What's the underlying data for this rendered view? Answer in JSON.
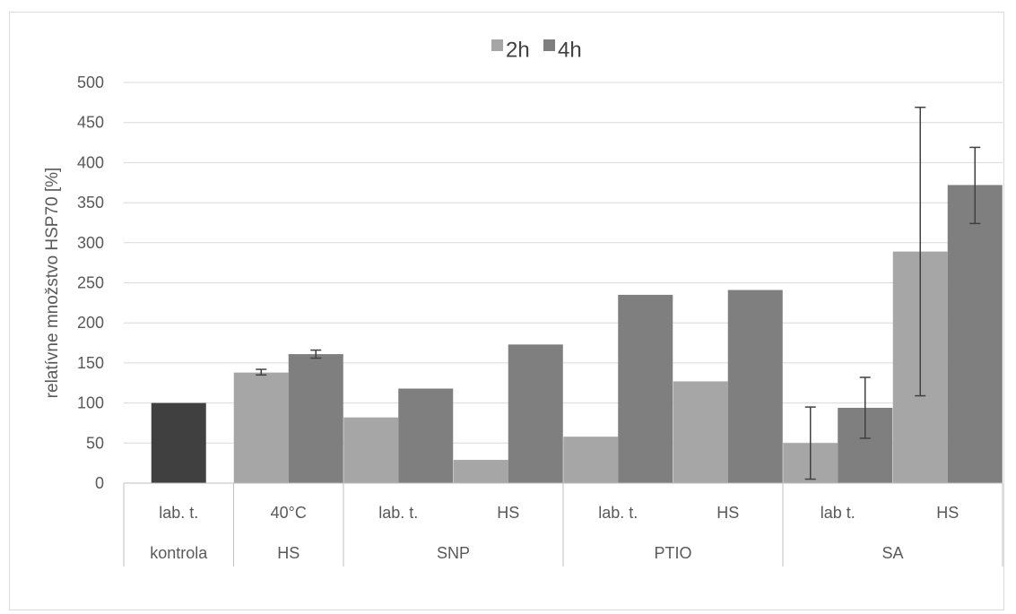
{
  "chart_data": {
    "type": "bar",
    "title": "",
    "xlabel": "",
    "ylabel": "relatívne množstvo HSP70 [%]",
    "ylim": [
      0,
      500
    ],
    "yticks": [
      0,
      50,
      100,
      150,
      200,
      250,
      300,
      350,
      400,
      450,
      500
    ],
    "grid": true,
    "legend_position": "top",
    "colors": {
      "2h": "#a6a6a6",
      "4h": "#7f7f7f",
      "kontrola": "#404040"
    },
    "series": [
      {
        "name": "2h",
        "values": [
          100,
          138,
          82,
          29,
          58,
          127,
          50,
          289
        ]
      },
      {
        "name": "4h",
        "values": [
          null,
          161,
          118,
          173,
          235,
          241,
          94,
          372
        ]
      }
    ],
    "errors": [
      {
        "series": "2h",
        "index": 1,
        "low": 135,
        "high": 142
      },
      {
        "series": "4h",
        "index": 1,
        "low": 156,
        "high": 166
      },
      {
        "series": "2h",
        "index": 6,
        "low": 5,
        "high": 95
      },
      {
        "series": "4h",
        "index": 6,
        "low": 56,
        "high": 132
      },
      {
        "series": "2h",
        "index": 7,
        "low": 109,
        "high": 469
      },
      {
        "series": "4h",
        "index": 7,
        "low": 324,
        "high": 419
      }
    ],
    "categories": [
      "lab. t.",
      "40°C",
      "lab. t.",
      "HS",
      "lab. t.",
      "HS",
      "lab t.",
      "HS"
    ],
    "groups": [
      {
        "label": "kontrola",
        "span": 1
      },
      {
        "label": "HS",
        "span": 1
      },
      {
        "label": "SNP",
        "span": 2
      },
      {
        "label": "PTIO",
        "span": 2
      },
      {
        "label": "SA",
        "span": 2
      }
    ]
  }
}
